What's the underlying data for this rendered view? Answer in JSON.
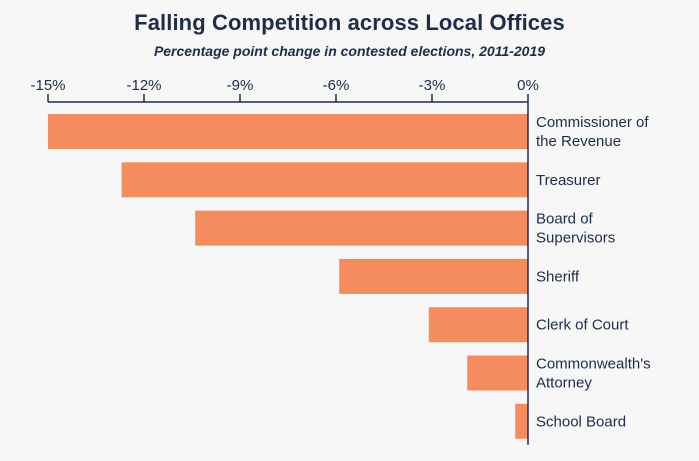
{
  "title": "Falling Competition across Local Offices",
  "subtitle": "Percentage point change in contested elections, 2011-2019",
  "chart_data": {
    "type": "bar",
    "orientation": "horizontal",
    "title": "Falling Competition across Local Offices",
    "subtitle": "Percentage point change in contested elections, 2011-2019",
    "categories": [
      "Commissioner of the Revenue",
      "Treasurer",
      "Board of Supervisors",
      "Sheriff",
      "Clerk of Court",
      "Commonwealth's Attorney",
      "School Board"
    ],
    "category_label_lines": [
      [
        "Commissioner of",
        "the Revenue"
      ],
      [
        "Treasurer"
      ],
      [
        "Board of",
        "Supervisors"
      ],
      [
        "Sheriff"
      ],
      [
        "Clerk of Court"
      ],
      [
        "Commonwealth's",
        "Attorney"
      ],
      [
        "School Board"
      ]
    ],
    "values": [
      -15.0,
      -12.7,
      -10.4,
      -5.9,
      -3.1,
      -1.9,
      -0.4
    ],
    "xlim": [
      -15,
      0
    ],
    "x_ticks": [
      -15,
      -12,
      -9,
      -6,
      -3,
      0
    ],
    "x_tick_labels": [
      "-15%",
      "-12%",
      "-9%",
      "-6%",
      "-3%",
      "0%"
    ],
    "axis_position": "top",
    "grid": false,
    "legend": "none",
    "bar_color": "#f58c5e",
    "axis_color": "#1d2d4a",
    "text_color": "#1d2d4a",
    "background_color": "#f6f7f6"
  }
}
